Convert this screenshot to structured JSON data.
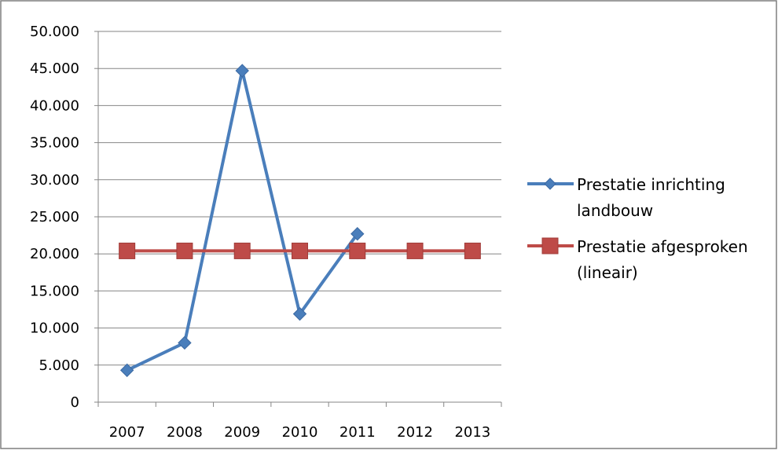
{
  "chart_data": {
    "type": "line",
    "categories": [
      "2007",
      "2008",
      "2009",
      "2010",
      "2011",
      "2012",
      "2013"
    ],
    "ylim": [
      0,
      50000
    ],
    "yticks": [
      "0",
      "5.000",
      "10.000",
      "15.000",
      "20.000",
      "25.000",
      "30.000",
      "35.000",
      "40.000",
      "45.000",
      "50.000"
    ],
    "grid": true,
    "legend_position": "right",
    "series": [
      {
        "name": "Prestatie inrichting landbouw",
        "name_lines": [
          "Prestatie inrichting",
          "landbouw"
        ],
        "values": [
          4300,
          8000,
          44700,
          11900,
          22700,
          null,
          null
        ],
        "color": "#4a7ebb",
        "marker": "diamond"
      },
      {
        "name": "Prestatie afgesproken (lineair)",
        "name_lines": [
          "Prestatie afgesproken",
          "(lineair)"
        ],
        "values": [
          20400,
          20400,
          20400,
          20400,
          20400,
          20400,
          20400
        ],
        "color": "#be4b48",
        "marker": "square"
      }
    ]
  }
}
